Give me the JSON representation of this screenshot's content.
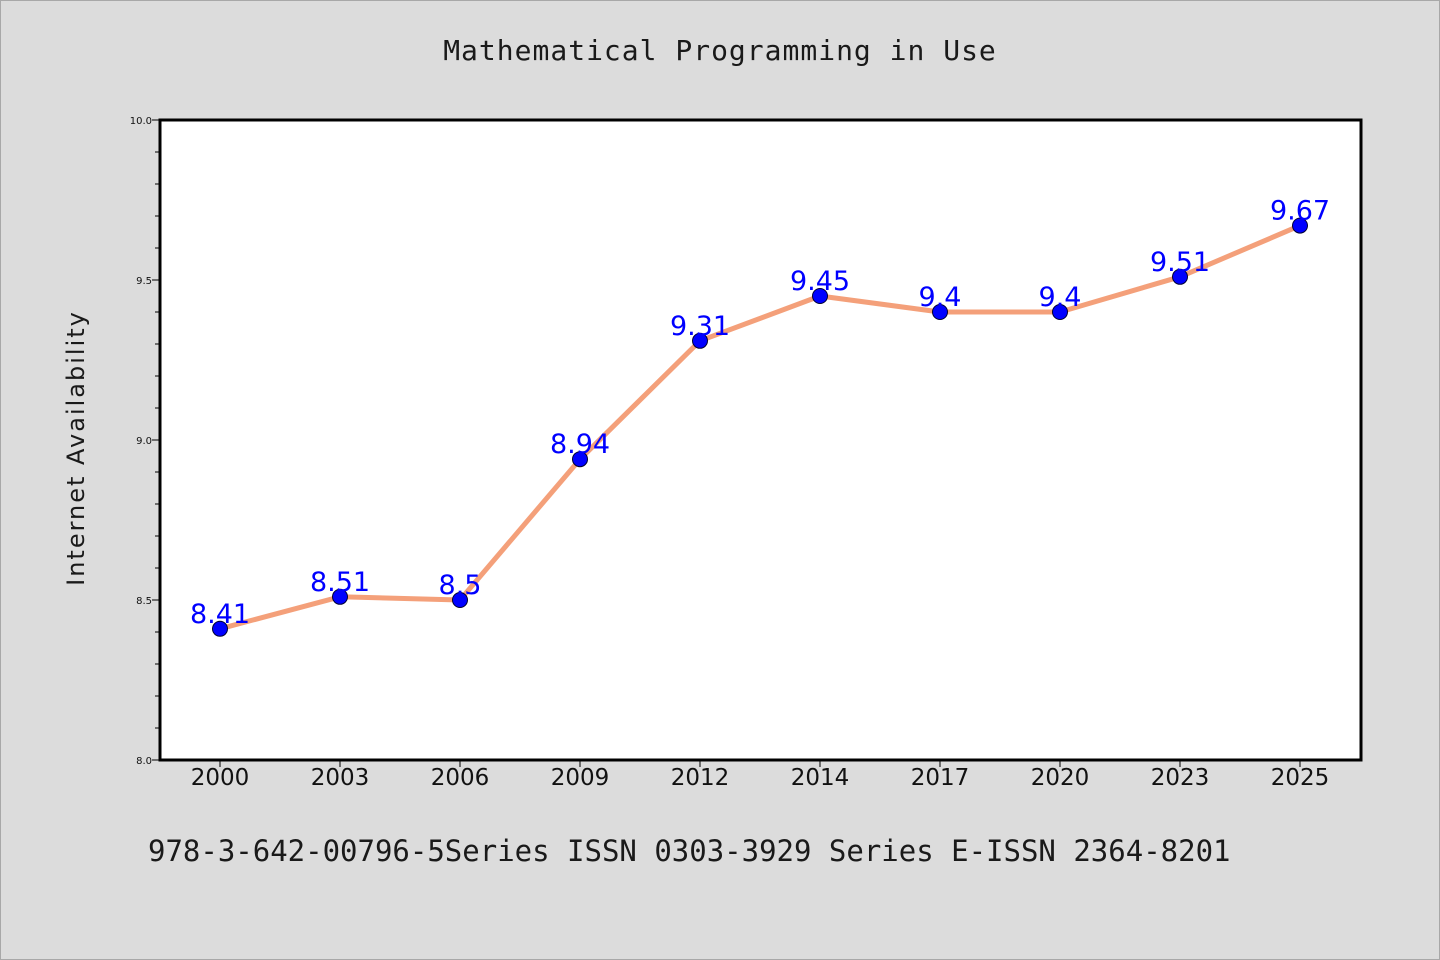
{
  "chart_data": {
    "type": "line",
    "title": "Mathematical Programming in Use",
    "xlabel": "",
    "ylabel": "Internet Availability",
    "categories": [
      "2000",
      "2003",
      "2006",
      "2009",
      "2012",
      "2014",
      "2017",
      "2020",
      "2023",
      "2025"
    ],
    "series": [
      {
        "values": [
          8.41,
          8.51,
          8.5,
          8.94,
          9.31,
          9.45,
          9.4,
          9.4,
          9.51,
          9.67
        ],
        "data_labels": [
          "8.41",
          "8.51",
          "8.5",
          "8.94",
          "9.31",
          "9.45",
          "9.4",
          "9.4",
          "9.51",
          "9.67"
        ],
        "line_color": "#f4a07a",
        "marker_color": "#0000ff"
      }
    ],
    "ylim": [
      8.0,
      10.0
    ],
    "yticks": [
      "8.0",
      "8.5",
      "9.0",
      "9.5",
      "10.0"
    ],
    "grid": false,
    "legend": "none"
  },
  "footer_text": "978-3-642-00796-5Series ISSN 0303-3929 Series E-ISSN 2364-8201",
  "colors": {
    "background": "#dcdcdc",
    "plot_background": "#ffffff",
    "line": "#f4a07a",
    "marker": "#0000ff",
    "data_label": "#0000ff"
  }
}
